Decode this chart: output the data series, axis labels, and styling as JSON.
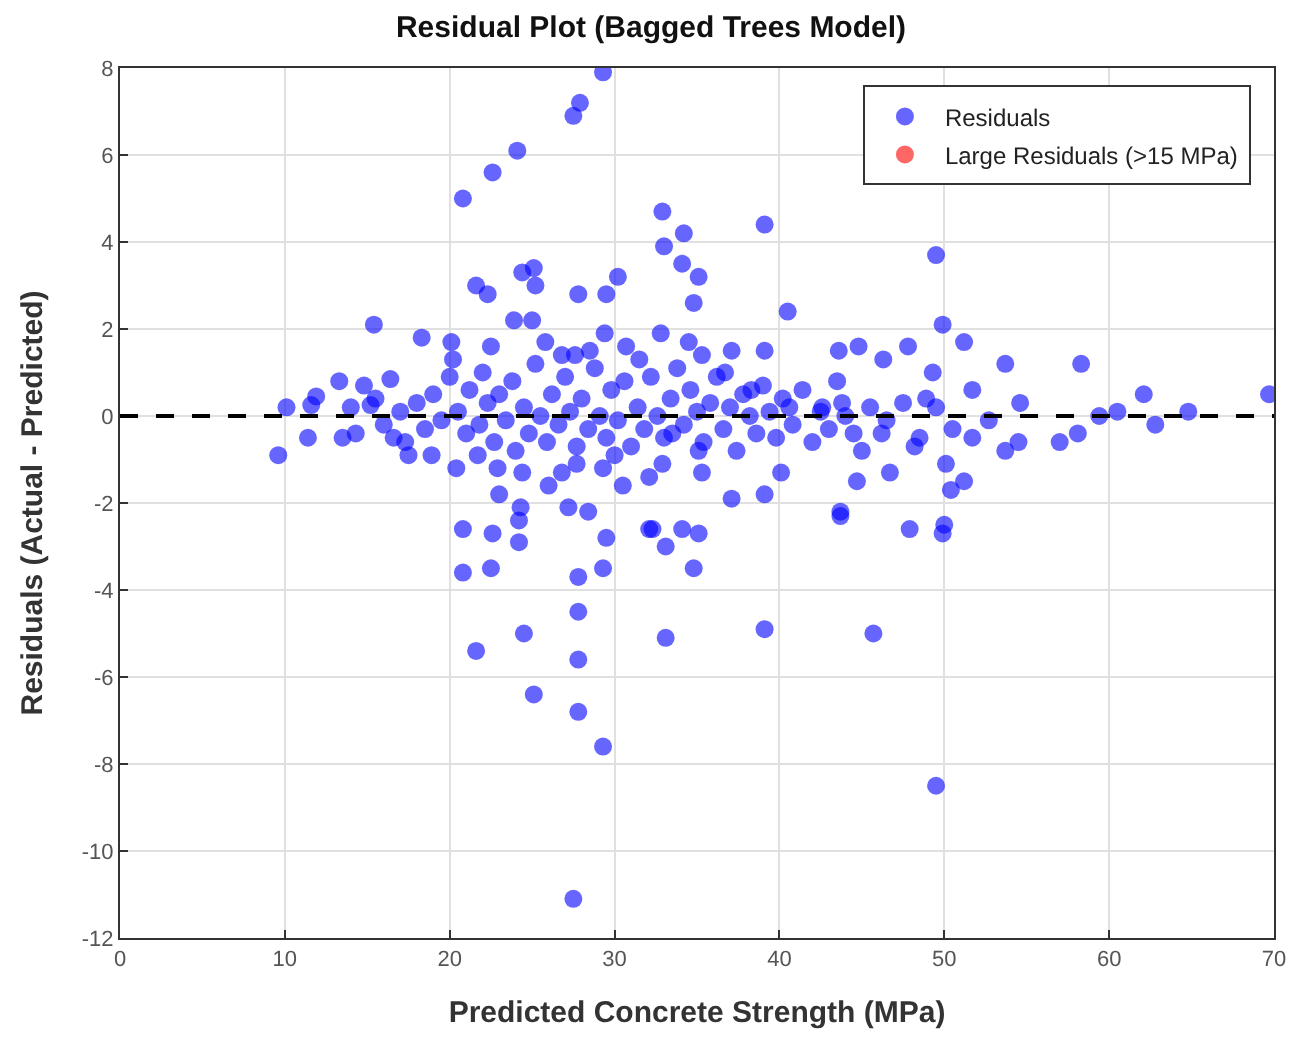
{
  "chart_data": {
    "type": "scatter",
    "title": "Residual Plot (Bagged Trees Model)",
    "xlabel": "Predicted Concrete Strength (MPa)",
    "ylabel": "Residuals (Actual - Predicted)",
    "xlim": [
      0,
      70
    ],
    "xticks": [
      0,
      10,
      20,
      30,
      40,
      50,
      60,
      70
    ],
    "ylim": [
      -12,
      8
    ],
    "yticks": [
      -12,
      -10,
      -8,
      -6,
      -4,
      -2,
      0,
      2,
      4,
      6,
      8
    ],
    "grid": true,
    "legend": "top right",
    "marker": "circle",
    "ref_lines": [
      {
        "axis": "y",
        "value": 0,
        "color": "#000000",
        "line_style": "dashed"
      }
    ],
    "series": [
      {
        "name": "Residuals",
        "color": "#0000ff",
        "x": [
          29.3,
          27.9,
          27.5,
          24.1,
          22.6,
          20.8,
          21.6,
          22.3,
          24.4,
          25.1,
          25.2,
          27.8,
          29.5,
          30.2,
          15.4,
          29.4,
          22.5,
          23.9,
          25.0,
          18.3,
          20.1,
          20.2,
          30.7,
          26.8,
          27.6,
          13.3,
          14.8,
          16.4,
          9.6,
          10.1,
          11.4,
          11.6,
          11.9,
          13.5,
          14.0,
          14.3,
          15.2,
          16.6,
          17.3,
          18.9,
          20.4,
          21.7,
          22.9,
          26.8,
          27.7,
          29.3,
          30.0,
          24.4,
          20.8,
          22.6,
          24.2,
          24.2,
          22.5,
          20.8,
          24.3,
          27.2,
          28.4,
          29.5,
          29.3,
          27.8,
          27.8,
          24.5,
          21.6,
          27.8,
          25.1,
          27.8,
          29.3,
          27.5,
          32.1,
          32.3,
          33.1,
          34.1,
          35.1,
          34.8,
          33.1,
          39.1,
          43.7,
          45.7,
          47.9,
          49.9,
          50.0,
          49.5,
          37.1,
          39.1,
          32.9,
          33.0,
          34.2,
          34.1,
          35.1,
          34.8,
          39.1,
          40.5,
          49.5,
          49.9,
          51.2,
          53.7,
          58.3,
          62.1,
          64.8,
          69.7,
          59.4,
          60.5,
          62.8,
          57.0,
          58.1,
          54.6,
          54.5,
          53.7,
          52.7,
          51.7,
          51.7,
          50.1,
          50.4,
          51.2,
          44.7,
          43.7,
          46.7,
          48.2,
          35.3,
          32.9,
          40.1,
          45.0,
          46.2,
          43.8,
          44.8,
          43.6,
          46.3,
          47.8,
          49.3,
          48.9,
          42.6,
          40.6,
          39.1,
          37.1,
          35.3,
          34.5,
          32.8,
          36.7,
          38.3,
          33.5,
          35.1,
          32.1,
          18.0,
          18.5,
          19.0,
          19.5,
          20.0,
          20.5,
          21.0,
          21.2,
          21.8,
          22.0,
          22.3,
          22.7,
          23.0,
          23.4,
          23.8,
          24.0,
          24.5,
          24.8,
          25.2,
          25.5,
          25.9,
          26.2,
          26.6,
          27.0,
          27.3,
          27.7,
          28.0,
          28.4,
          28.8,
          29.1,
          29.5,
          29.8,
          30.2,
          30.6,
          31.0,
          31.4,
          31.8,
          32.2,
          32.6,
          33.0,
          33.4,
          33.8,
          34.2,
          34.6,
          35.0,
          35.4,
          35.8,
          36.2,
          36.6,
          37.0,
          37.4,
          37.8,
          38.2,
          38.6,
          39.0,
          39.4,
          39.8,
          40.2,
          40.8,
          41.4,
          42.0,
          42.5,
          43.0,
          43.5,
          44.0,
          44.5,
          45.5,
          46.5,
          47.5,
          48.5,
          49.5,
          50.5,
          16.0,
          17.0,
          15.5,
          17.5,
          26.0,
          30.5,
          23.0,
          28.5,
          31.5,
          25.8
        ],
        "values": [
          7.9,
          7.2,
          6.9,
          6.1,
          5.6,
          5.0,
          3.0,
          2.8,
          3.3,
          3.4,
          3.0,
          2.8,
          2.8,
          3.2,
          2.1,
          1.9,
          1.6,
          2.2,
          2.2,
          1.8,
          1.7,
          1.3,
          1.6,
          1.4,
          1.4,
          0.8,
          0.7,
          0.85,
          -0.9,
          0.2,
          -0.5,
          0.25,
          0.45,
          -0.5,
          0.2,
          -0.4,
          0.25,
          -0.5,
          -0.6,
          -0.9,
          -1.2,
          -0.9,
          -1.2,
          -1.3,
          -1.1,
          -1.2,
          -0.9,
          -1.3,
          -2.6,
          -2.7,
          -2.4,
          -2.9,
          -3.5,
          -3.6,
          -2.1,
          -2.1,
          -2.2,
          -2.8,
          -3.5,
          -3.7,
          -4.5,
          -5.0,
          -5.4,
          -5.6,
          -6.4,
          -6.8,
          -7.6,
          -11.1,
          -2.6,
          -2.6,
          -3.0,
          -2.6,
          -2.7,
          -3.5,
          -5.1,
          -4.9,
          -2.3,
          -5.0,
          -2.6,
          -2.7,
          -2.5,
          -8.5,
          -1.9,
          -1.8,
          4.7,
          3.9,
          4.2,
          3.5,
          3.2,
          2.6,
          4.4,
          2.4,
          3.7,
          2.1,
          1.7,
          1.2,
          1.2,
          0.5,
          0.1,
          0.5,
          0.0,
          0.1,
          -0.2,
          -0.6,
          -0.4,
          0.3,
          -0.6,
          -0.8,
          -0.1,
          0.6,
          -0.5,
          -1.1,
          -1.7,
          -1.5,
          -1.5,
          -2.2,
          -1.3,
          -0.7,
          -1.3,
          -1.1,
          -1.3,
          -0.8,
          -0.4,
          0.3,
          1.6,
          1.5,
          1.3,
          1.6,
          1.0,
          0.4,
          0.2,
          0.2,
          1.5,
          1.5,
          1.4,
          1.7,
          1.9,
          1.0,
          0.6,
          -0.4,
          -0.8,
          -1.4,
          0.3,
          -0.3,
          0.5,
          -0.1,
          0.9,
          0.1,
          -0.4,
          0.6,
          -0.2,
          1.0,
          0.3,
          -0.6,
          0.5,
          -0.1,
          0.8,
          -0.8,
          0.2,
          -0.4,
          1.2,
          0.0,
          -0.6,
          0.5,
          -0.2,
          0.9,
          0.1,
          -0.7,
          0.4,
          -0.3,
          1.1,
          0.0,
          -0.5,
          0.6,
          -0.1,
          0.8,
          -0.7,
          0.2,
          -0.3,
          0.9,
          0.0,
          -0.5,
          0.4,
          1.1,
          -0.2,
          0.6,
          0.1,
          -0.6,
          0.3,
          0.9,
          -0.3,
          0.2,
          -0.8,
          0.5,
          0.0,
          -0.4,
          0.7,
          0.1,
          -0.5,
          0.4,
          -0.2,
          0.6,
          -0.6,
          0.1,
          -0.3,
          0.8,
          0.0,
          -0.4,
          0.2,
          -0.1,
          0.3,
          -0.5,
          0.2,
          -0.3,
          -0.2,
          0.1,
          0.4,
          -0.9,
          -1.6,
          -1.6,
          -1.8,
          1.5,
          1.3,
          1.7
        ]
      },
      {
        "name": "Large Residuals (>15 MPa)",
        "color": "#ff0000"
      }
    ]
  }
}
